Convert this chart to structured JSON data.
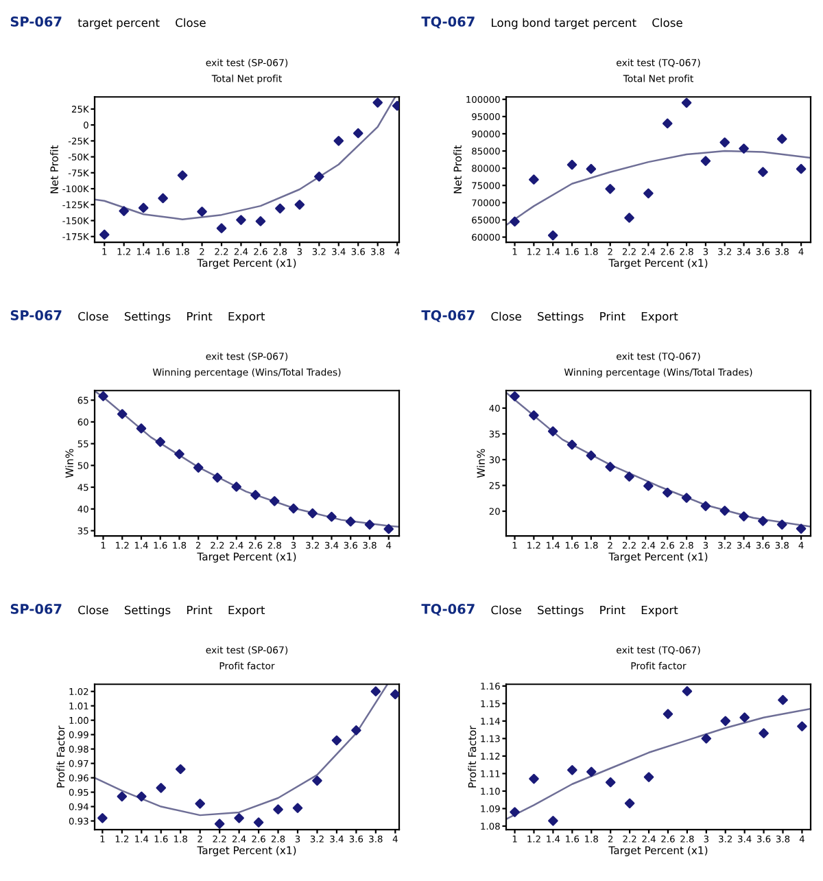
{
  "chart_data": [
    {
      "type": "scatter",
      "title": "exit test (SP-067)",
      "subtitle": "Total Net profit",
      "xlabel": "Target Percent (x1)",
      "ylabel": "Net Profit",
      "annotations": [
        "SP-067",
        "target percent",
        "Close"
      ],
      "xlim": [
        0.9,
        4.02
      ],
      "ylim": [
        -184000,
        44000
      ],
      "xticks": [
        1,
        1.2,
        1.4,
        1.6,
        1.8,
        2,
        2.2,
        2.4,
        2.6,
        2.8,
        3,
        3.2,
        3.4,
        3.6,
        3.8,
        4
      ],
      "yticks": [
        {
          "value": 25000,
          "label": "25K"
        },
        0,
        {
          "value": -25000,
          "label": "-25K"
        },
        {
          "value": -50000,
          "label": "-50K"
        },
        {
          "value": -75000,
          "label": "-75K"
        },
        {
          "value": -100000,
          "label": "-100K"
        },
        {
          "value": -125000,
          "label": "-125K"
        },
        {
          "value": -150000,
          "label": "-150K"
        },
        {
          "value": -175000,
          "label": "-175K"
        }
      ],
      "grid": false,
      "series": [
        {
          "type": "scatter",
          "marker": "diamond",
          "color": "#1a1a78",
          "x": [
            1,
            1.2,
            1.4,
            1.6,
            1.8,
            2,
            2.2,
            2.4,
            2.6,
            2.8,
            3,
            3.2,
            3.4,
            3.6,
            3.8,
            4
          ],
          "values": [
            -172000,
            -135000,
            -130000,
            -115000,
            -79000,
            -136000,
            -162000,
            -149000,
            -151000,
            -131000,
            -125000,
            -81000,
            -25000,
            -13000,
            35000,
            30000
          ]
        },
        {
          "type": "line",
          "marker": "none",
          "color": "#6e6e96",
          "x": [
            0.9,
            1,
            1.4,
            1.8,
            2.2,
            2.6,
            3,
            3.4,
            3.8,
            3.98
          ],
          "values": [
            -117000,
            -119000,
            -140000,
            -148000,
            -141000,
            -127000,
            -101000,
            -62000,
            -3000,
            44000
          ]
        }
      ]
    },
    {
      "type": "scatter",
      "title": "exit test (TQ-067)",
      "subtitle": "Total Net profit",
      "xlabel": "Target Percent (x1)",
      "ylabel": "Net Profit",
      "annotations": [
        "TQ-067",
        "Long bond target percent",
        "Close"
      ],
      "xlim": [
        0.91,
        4.1
      ],
      "ylim": [
        58500,
        100700
      ],
      "xticks": [
        1,
        1.2,
        1.4,
        1.6,
        1.8,
        2,
        2.2,
        2.4,
        2.6,
        2.8,
        3,
        3.2,
        3.4,
        3.6,
        3.8,
        4
      ],
      "yticks": [
        60000,
        65000,
        70000,
        75000,
        80000,
        85000,
        90000,
        95000,
        100000
      ],
      "grid": false,
      "series": [
        {
          "type": "scatter",
          "marker": "diamond",
          "color": "#1a1a78",
          "x": [
            1,
            1.2,
            1.4,
            1.6,
            1.8,
            2,
            2.2,
            2.4,
            2.6,
            2.8,
            3,
            3.2,
            3.4,
            3.6,
            3.8,
            4
          ],
          "values": [
            64500,
            76700,
            60500,
            81000,
            79800,
            74000,
            65600,
            72700,
            93000,
            99000,
            82100,
            87500,
            85700,
            78900,
            88500,
            79800
          ]
        },
        {
          "type": "line",
          "marker": "none",
          "color": "#6e6e96",
          "x": [
            0.91,
            1.2,
            1.6,
            2,
            2.4,
            2.8,
            3.2,
            3.6,
            4.1
          ],
          "values": [
            63500,
            69000,
            75500,
            78900,
            81800,
            84000,
            85000,
            84700,
            83000
          ]
        }
      ]
    },
    {
      "type": "scatter",
      "title": "exit test (SP-067)",
      "subtitle": "Winning percentage (Wins/Total Trades)",
      "xlabel": "Target Percent (x1)",
      "ylabel": "Win%",
      "annotations": [
        "SP-067",
        "Close",
        "Settings",
        "Print",
        "Export"
      ],
      "xlim": [
        0.91,
        4.11
      ],
      "ylim": [
        33.8,
        67.2
      ],
      "xticks": [
        1,
        1.2,
        1.4,
        1.6,
        1.8,
        2,
        2.2,
        2.4,
        2.6,
        2.8,
        3,
        3.2,
        3.4,
        3.6,
        3.8,
        4
      ],
      "yticks": [
        35,
        40,
        45,
        50,
        55,
        60,
        65
      ],
      "grid": false,
      "series": [
        {
          "type": "scatter",
          "marker": "diamond",
          "color": "#1a1a78",
          "x": [
            1,
            1.2,
            1.4,
            1.6,
            1.8,
            2,
            2.2,
            2.4,
            2.6,
            2.8,
            3,
            3.2,
            3.4,
            3.6,
            3.8,
            4
          ],
          "values": [
            65.9,
            61.8,
            58.5,
            55.4,
            52.6,
            49.5,
            47.2,
            45.1,
            43.2,
            41.8,
            40.1,
            39.0,
            38.2,
            37.1,
            36.4,
            35.4
          ]
        },
        {
          "type": "line",
          "marker": "none",
          "color": "#6e6e96",
          "x": [
            0.91,
            1,
            1.5,
            2,
            2.5,
            3,
            3.5,
            4,
            4.11
          ],
          "values": [
            67.1,
            65.7,
            56.5,
            49.6,
            44.0,
            40.2,
            37.5,
            36.1,
            35.9
          ]
        }
      ]
    },
    {
      "type": "scatter",
      "title": "exit test (TQ-067)",
      "subtitle": "Winning percentage (Wins/Total Trades)",
      "xlabel": "Target Percent (x1)",
      "ylabel": "Win%",
      "annotations": [
        "TQ-067",
        "Close",
        "Settings",
        "Print",
        "Export"
      ],
      "xlim": [
        0.91,
        4.1
      ],
      "ylim": [
        15.2,
        43.4
      ],
      "xticks": [
        1,
        1.2,
        1.4,
        1.6,
        1.8,
        2,
        2.2,
        2.4,
        2.6,
        2.8,
        3,
        3.2,
        3.4,
        3.6,
        3.8,
        4
      ],
      "yticks": [
        20,
        25,
        30,
        35,
        40
      ],
      "grid": false,
      "series": [
        {
          "type": "scatter",
          "marker": "diamond",
          "color": "#1a1a78",
          "x": [
            1,
            1.2,
            1.4,
            1.6,
            1.8,
            2,
            2.2,
            2.4,
            2.6,
            2.8,
            3,
            3.2,
            3.4,
            3.6,
            3.8,
            4
          ],
          "values": [
            42.3,
            38.6,
            35.5,
            32.9,
            30.8,
            28.6,
            26.7,
            24.9,
            23.6,
            22.6,
            21.0,
            20.1,
            19.0,
            18.1,
            17.4,
            16.6
          ]
        },
        {
          "type": "line",
          "marker": "none",
          "color": "#6e6e96",
          "x": [
            0.91,
            1.5,
            2,
            2.5,
            3,
            3.5,
            4.1
          ],
          "values": [
            43.0,
            33.9,
            29.0,
            24.9,
            21.2,
            18.7,
            17.0
          ]
        }
      ]
    },
    {
      "type": "scatter",
      "title": "exit test (SP-067)",
      "subtitle": "Profit factor",
      "xlabel": "Target Percent (x1)",
      "ylabel": "Profit Factor",
      "annotations": [
        "SP-067",
        "Close",
        "Settings",
        "Print",
        "Export"
      ],
      "xlim": [
        0.92,
        4.04
      ],
      "ylim": [
        0.924,
        1.025
      ],
      "xticks": [
        1,
        1.2,
        1.4,
        1.6,
        1.8,
        2,
        2.2,
        2.4,
        2.6,
        2.8,
        3,
        3.2,
        3.4,
        3.6,
        3.8,
        4
      ],
      "yticks": [
        0.93,
        0.94,
        0.95,
        0.96,
        0.97,
        0.98,
        0.99,
        {
          "value": 1.0,
          "label": "1.00"
        },
        1.01,
        1.02
      ],
      "grid": false,
      "series": [
        {
          "type": "scatter",
          "marker": "diamond",
          "color": "#1a1a78",
          "x": [
            1,
            1.2,
            1.4,
            1.6,
            1.8,
            2,
            2.2,
            2.4,
            2.6,
            2.8,
            3,
            3.2,
            3.4,
            3.6,
            3.8,
            4
          ],
          "values": [
            0.932,
            0.947,
            0.947,
            0.953,
            0.966,
            0.942,
            0.928,
            0.932,
            0.929,
            0.938,
            0.939,
            0.958,
            0.986,
            0.993,
            1.02,
            1.018
          ]
        },
        {
          "type": "line",
          "marker": "none",
          "color": "#6e6e96",
          "x": [
            0.92,
            1.2,
            1.6,
            2,
            2.4,
            2.8,
            3.2,
            3.6,
            3.92
          ],
          "values": [
            0.96,
            0.951,
            0.94,
            0.934,
            0.936,
            0.946,
            0.962,
            0.991,
            1.025
          ]
        }
      ]
    },
    {
      "type": "scatter",
      "title": "exit test (TQ-067)",
      "subtitle": "Profit factor",
      "xlabel": "Target Percent (x1)",
      "ylabel": "Profit Factor",
      "annotations": [
        "TQ-067",
        "Close",
        "Settings",
        "Print",
        "Export"
      ],
      "xlim": [
        0.91,
        4.09
      ],
      "ylim": [
        1.078,
        1.161
      ],
      "xticks": [
        1,
        1.2,
        1.4,
        1.6,
        1.8,
        2,
        2.2,
        2.4,
        2.6,
        2.8,
        3,
        3.2,
        3.4,
        3.6,
        3.8,
        4
      ],
      "yticks": [
        1.08,
        1.09,
        {
          "value": 1.1,
          "label": "1.10"
        },
        1.11,
        1.12,
        1.13,
        1.14,
        1.15,
        1.16
      ],
      "grid": false,
      "series": [
        {
          "type": "scatter",
          "marker": "diamond",
          "color": "#1a1a78",
          "x": [
            1,
            1.2,
            1.4,
            1.6,
            1.8,
            2,
            2.2,
            2.4,
            2.6,
            2.8,
            3,
            3.2,
            3.4,
            3.6,
            3.8,
            4
          ],
          "values": [
            1.088,
            1.107,
            1.083,
            1.112,
            1.111,
            1.105,
            1.093,
            1.108,
            1.144,
            1.157,
            1.13,
            1.14,
            1.142,
            1.133,
            1.152,
            1.137
          ]
        },
        {
          "type": "line",
          "marker": "none",
          "color": "#6e6e96",
          "x": [
            0.91,
            1.2,
            1.6,
            2,
            2.4,
            2.8,
            3.2,
            3.6,
            4.09
          ],
          "values": [
            1.084,
            1.092,
            1.104,
            1.113,
            1.122,
            1.129,
            1.136,
            1.142,
            1.147
          ]
        }
      ]
    }
  ]
}
